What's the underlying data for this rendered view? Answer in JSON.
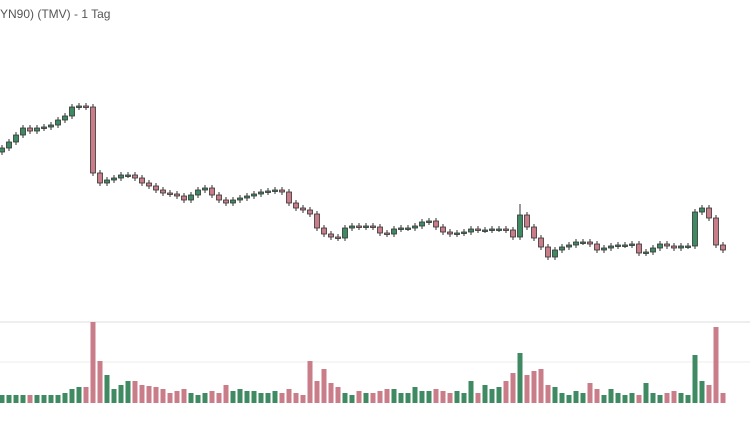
{
  "chart_data": {
    "type": "candlestick",
    "title": "YN90) (TMV) - 1 Tag",
    "open": [
      168,
      172,
      178,
      185,
      192,
      189,
      192,
      193,
      195,
      200,
      204,
      213,
      214,
      213,
      147,
      137,
      140,
      142,
      145,
      145,
      142,
      137,
      134,
      130,
      127,
      126,
      124,
      120,
      125,
      130,
      132,
      125,
      120,
      117,
      120,
      122,
      124,
      126,
      128,
      129,
      130,
      128,
      117,
      112,
      110,
      106,
      92,
      86,
      83,
      82,
      92,
      94,
      93,
      94,
      93,
      87,
      86,
      91,
      92,
      92,
      94,
      98,
      99,
      93,
      88,
      86,
      87,
      88,
      91,
      90,
      90,
      91,
      91,
      90,
      83,
      105,
      93,
      82,
      73,
      63,
      70,
      73,
      75,
      78,
      78,
      76,
      70,
      72,
      74,
      75,
      75,
      76,
      67,
      68,
      72,
      76,
      74,
      72,
      74,
      74,
      108,
      112,
      102,
      75
    ],
    "high": [
      175,
      181,
      188,
      195,
      195,
      195,
      196,
      198,
      203,
      207,
      216,
      217,
      217,
      216,
      150,
      143,
      145,
      148,
      148,
      148,
      145,
      140,
      137,
      133,
      130,
      129,
      127,
      128,
      133,
      135,
      135,
      128,
      123,
      123,
      125,
      127,
      129,
      131,
      132,
      133,
      133,
      131,
      120,
      115,
      113,
      109,
      95,
      89,
      86,
      95,
      97,
      97,
      97,
      97,
      96,
      90,
      94,
      95,
      95,
      97,
      101,
      102,
      102,
      96,
      91,
      90,
      91,
      94,
      94,
      93,
      94,
      94,
      94,
      93,
      116,
      108,
      96,
      85,
      76,
      73,
      76,
      78,
      81,
      81,
      81,
      79,
      75,
      77,
      78,
      78,
      79,
      79,
      71,
      75,
      79,
      79,
      77,
      77,
      77,
      111,
      115,
      115,
      105,
      78
    ],
    "low": [
      165,
      169,
      175,
      182,
      186,
      186,
      189,
      190,
      192,
      197,
      201,
      210,
      210,
      144,
      134,
      134,
      137,
      139,
      142,
      139,
      134,
      131,
      127,
      124,
      123,
      121,
      117,
      117,
      122,
      127,
      122,
      117,
      114,
      114,
      117,
      119,
      121,
      123,
      125,
      126,
      125,
      114,
      109,
      107,
      103,
      89,
      83,
      80,
      79,
      79,
      89,
      90,
      90,
      90,
      84,
      83,
      83,
      88,
      89,
      89,
      91,
      95,
      90,
      85,
      83,
      83,
      84,
      85,
      87,
      87,
      87,
      88,
      87,
      80,
      80,
      90,
      79,
      70,
      60,
      60,
      67,
      70,
      72,
      75,
      73,
      67,
      67,
      69,
      71,
      72,
      72,
      64,
      64,
      65,
      69,
      71,
      69,
      69,
      71,
      71,
      105,
      99,
      72,
      67
    ],
    "close": [
      172,
      178,
      185,
      192,
      189,
      192,
      193,
      195,
      200,
      204,
      213,
      214,
      213,
      147,
      137,
      140,
      142,
      145,
      145,
      142,
      137,
      134,
      130,
      127,
      126,
      124,
      120,
      125,
      130,
      132,
      125,
      120,
      117,
      120,
      122,
      124,
      126,
      128,
      129,
      130,
      128,
      117,
      112,
      110,
      106,
      92,
      86,
      83,
      82,
      92,
      94,
      93,
      94,
      93,
      87,
      86,
      91,
      92,
      92,
      94,
      98,
      99,
      93,
      88,
      86,
      87,
      88,
      91,
      90,
      90,
      91,
      91,
      90,
      83,
      105,
      93,
      82,
      73,
      63,
      70,
      73,
      75,
      78,
      78,
      76,
      70,
      72,
      74,
      75,
      75,
      76,
      67,
      68,
      72,
      76,
      74,
      72,
      74,
      74,
      108,
      112,
      102,
      75,
      70
    ],
    "volume": [
      8,
      8,
      8,
      8,
      8,
      8,
      8,
      8,
      8,
      10,
      14,
      16,
      16,
      81,
      42,
      28,
      14,
      18,
      22,
      22,
      18,
      17,
      16,
      14,
      10,
      12,
      14,
      10,
      8,
      10,
      12,
      10,
      18,
      12,
      14,
      12,
      12,
      10,
      10,
      12,
      10,
      14,
      10,
      8,
      42,
      22,
      34,
      20,
      16,
      10,
      8,
      12,
      10,
      10,
      12,
      14,
      14,
      10,
      10,
      16,
      12,
      12,
      14,
      12,
      10,
      12,
      10,
      22,
      10,
      18,
      14,
      16,
      22,
      30,
      50,
      28,
      32,
      34,
      18,
      16,
      10,
      8,
      12,
      10,
      20,
      14,
      8,
      14,
      10,
      8,
      10,
      8,
      20,
      10,
      8,
      10,
      12,
      10,
      8,
      48,
      22,
      18,
      76,
      10
    ],
    "ylim": [
      0,
      320
    ],
    "volume_ylim": [
      0,
      81
    ],
    "up_color": "#3f8a62",
    "down_color": "#c97d88"
  }
}
